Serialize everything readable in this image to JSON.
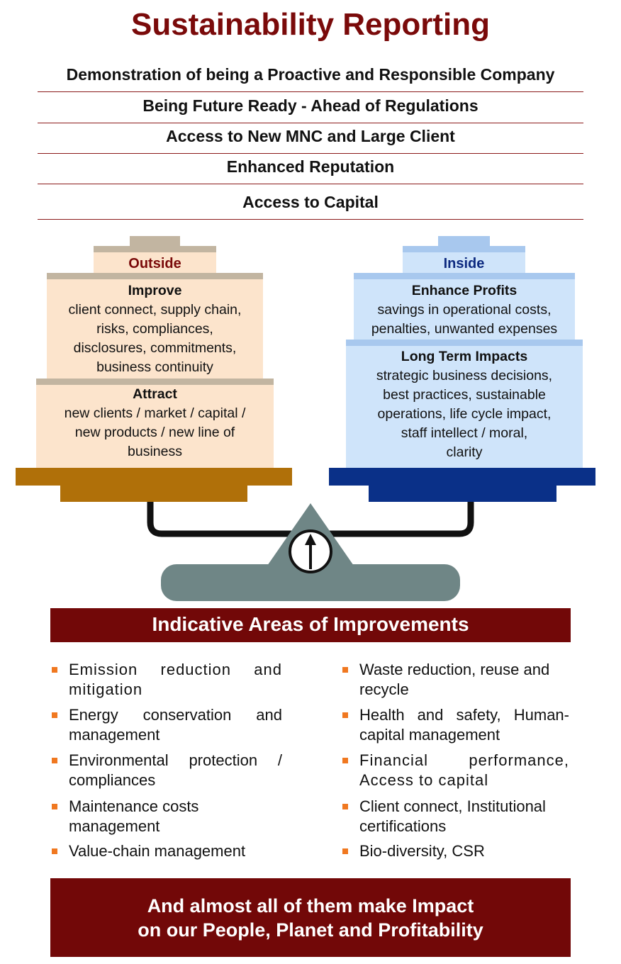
{
  "title": "Sustainability Reporting",
  "benefits": [
    "Demonstration of being a Proactive and Responsible Company",
    "Being Future Ready - Ahead of Regulations",
    "Access to New MNC and Large Client",
    "Enhanced Reputation",
    "Access to Capital"
  ],
  "outside": {
    "label": "Outside",
    "improve": {
      "heading": "Improve",
      "lines": [
        "client connect, supply chain,",
        "risks, compliances,",
        "disclosures, commitments,",
        "business continuity"
      ]
    },
    "attract": {
      "heading": "Attract",
      "lines": [
        "new clients / market / capital /",
        "new products / new line of",
        "business"
      ]
    }
  },
  "inside": {
    "label": "Inside",
    "enhance": {
      "heading": "Enhance Profits",
      "lines": [
        "savings in operational costs,",
        "penalties, unwanted expenses"
      ]
    },
    "longterm": {
      "heading": "Long Term Impacts",
      "lines": [
        "strategic business decisions,",
        "best practices, sustainable",
        "operations, life cycle impact,",
        "staff intellect / moral,",
        "clarity"
      ]
    }
  },
  "improvements_banner": "Indicative Areas of Improvements",
  "improvements": {
    "left": [
      "Emission reduction and mitigation",
      "Energy conservation and management",
      "Environmental protection / compliances",
      "Maintenance costs management",
      "Value-chain management"
    ],
    "right": [
      "Waste reduction, reuse and recycle",
      "Health and safety, Human-capital management",
      "Financial performance, Access to capital",
      "Client connect, Institutional certifications",
      "Bio-diversity, CSR"
    ]
  },
  "footer": {
    "line1": "And almost all of them make Impact",
    "line2": "on our People, Planet and Profitability"
  },
  "colors": {
    "title": "#7a0a0a",
    "outside_label": "#7a0a0a",
    "inside_label": "#0d2a80",
    "peach": "#fce4cc",
    "light_blue": "#cfe4fa",
    "gold_pan": "#b07009",
    "blue_pan": "#0a3088",
    "fulcrum": "#6f8686",
    "banner": "#720808",
    "bullet": "#f07820"
  }
}
